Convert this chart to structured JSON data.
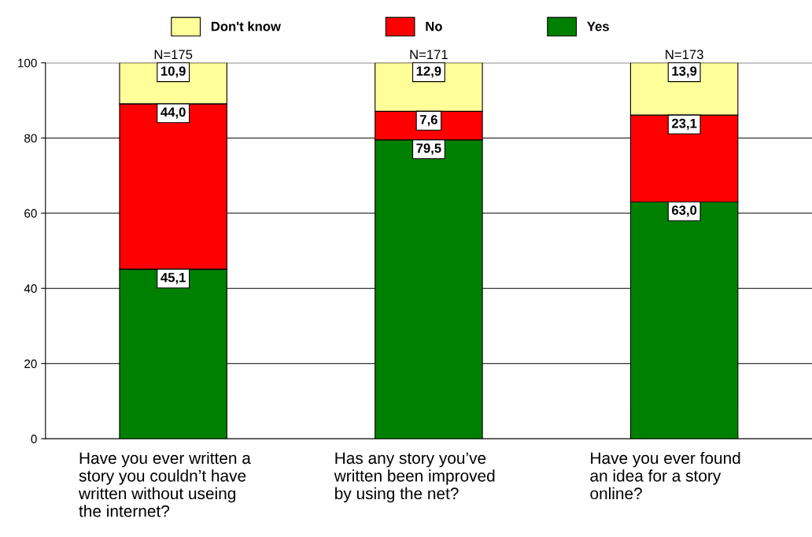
{
  "chart_data": {
    "type": "bar",
    "stacked": true,
    "categories": [
      "Have you ever written a\nstory you couldn’t have\nwritten without useing\nthe internet?",
      "Has any story you’ve\nwritten been improved\nby using the net?",
      "Have you ever found\nan idea for a story\nonline?"
    ],
    "series": [
      {
        "name": "Yes",
        "color": "#008000",
        "values": [
          45.1,
          79.5,
          63.0
        ],
        "value_labels": [
          "45,1",
          "79,5",
          "63,0"
        ]
      },
      {
        "name": "No",
        "color": "#ff0000",
        "values": [
          44.0,
          7.6,
          23.1
        ],
        "value_labels": [
          "44,0",
          "7,6",
          "23,1"
        ]
      },
      {
        "name": "Don't know",
        "color": "#ffff99",
        "values": [
          10.9,
          12.9,
          13.9
        ],
        "value_labels": [
          "10,9",
          "12,9",
          "13,9"
        ]
      }
    ],
    "annotations": [
      "N=175",
      "N=171",
      "N=173"
    ],
    "ylim": [
      0,
      100
    ],
    "yticks": [
      0,
      20,
      40,
      60,
      80,
      100
    ],
    "grid": "y",
    "legend": "top"
  }
}
